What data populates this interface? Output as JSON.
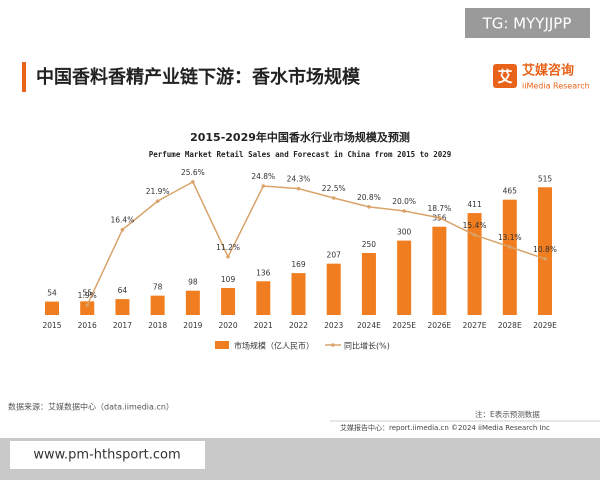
{
  "watermark_top": "TG: MYYJJPP",
  "header": {
    "title": "中国香料香精产业链下游：香水市场规模",
    "logo_cn": "艾媒咨询",
    "logo_en": "iiMedia Research",
    "logo_mark": "艾"
  },
  "chart_data": {
    "type": "bar-line",
    "title": "2015-2029年中国香水行业市场规模及预测",
    "subtitle": "Perfume Market Retail Sales and Forecast in China from 2015 to 2029",
    "categories": [
      "2015",
      "2016",
      "2017",
      "2018",
      "2019",
      "2020",
      "2021",
      "2022",
      "2023",
      "2024E",
      "2025E",
      "2026E",
      "2027E",
      "2028E",
      "2029E"
    ],
    "series": [
      {
        "name": "市场规模（亿人民币）",
        "type": "bar",
        "color": "#f07d1f",
        "values": [
          54,
          55,
          64,
          78,
          98,
          109,
          136,
          169,
          207,
          250,
          300,
          356,
          411,
          465,
          515
        ]
      },
      {
        "name": "同比增长(%)",
        "type": "line",
        "color": "#d9a36a",
        "values": [
          null,
          1.9,
          16.4,
          21.9,
          25.6,
          11.2,
          24.8,
          24.3,
          22.5,
          20.8,
          20.0,
          18.7,
          15.4,
          13.1,
          10.8
        ],
        "value_labels": [
          null,
          "1.9%",
          "16.4%",
          "21.9%",
          "25.6%",
          "11.2%",
          "24.8%",
          "24.3%",
          "22.5%",
          "20.8%",
          "20.0%",
          "18.7%",
          "15.4%",
          "13.1%",
          "10.8%"
        ]
      }
    ],
    "legend": "bottom"
  },
  "source": "数据来源：艾媒数据中心（data.iimedia.cn）",
  "note": "注：E表示预测数据",
  "footer": "艾媒报告中心：report.iimedia.cn  ©2024  iiMedia Research  Inc",
  "watermark_bottom": "www.pm-hthsport.com"
}
